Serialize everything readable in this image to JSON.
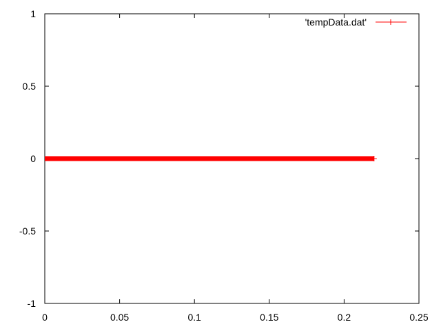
{
  "chart_data": {
    "type": "line",
    "title": "",
    "xlabel": "",
    "ylabel": "",
    "xlim": [
      0,
      0.25
    ],
    "ylim": [
      -1,
      1
    ],
    "x_ticks": [
      0,
      0.05,
      0.1,
      0.15,
      0.2,
      0.25
    ],
    "x_tick_labels": [
      "0",
      "0.05",
      "0.1",
      "0.15",
      "0.2",
      "0.25"
    ],
    "y_ticks": [
      -1,
      -0.5,
      0,
      0.5,
      1
    ],
    "y_tick_labels": [
      "-1",
      "-0.5",
      "0",
      "0.5",
      "1"
    ],
    "grid": false,
    "legend_position": "top-right",
    "series": [
      {
        "name": "'tempData.dat'",
        "color": "#ff0000",
        "marker": "plus",
        "x_start": 0,
        "x_end": 0.22,
        "y_value": 0
      }
    ]
  }
}
